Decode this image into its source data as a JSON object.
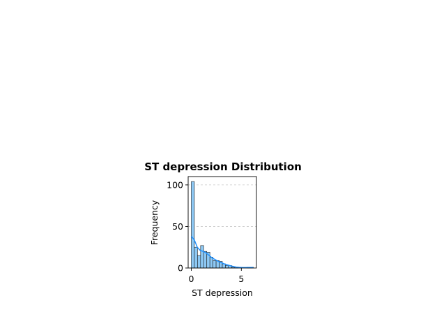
{
  "chart_data": {
    "type": "bar",
    "title": "ST depression Distribution",
    "xlabel": "ST depression",
    "ylabel": "Frequency",
    "xlim": [
      -0.31,
      6.51
    ],
    "ylim": [
      0,
      110
    ],
    "xticks": [
      0,
      5
    ],
    "yticks": [
      0,
      50,
      100
    ],
    "grid": "y-dashed",
    "bin_width": 0.31,
    "bins": [
      {
        "x0": 0.0,
        "x1": 0.31,
        "count": 104
      },
      {
        "x0": 0.31,
        "x1": 0.62,
        "count": 25
      },
      {
        "x0": 0.62,
        "x1": 0.93,
        "count": 15
      },
      {
        "x0": 0.93,
        "x1": 1.24,
        "count": 27
      },
      {
        "x0": 1.24,
        "x1": 1.55,
        "count": 20
      },
      {
        "x0": 1.55,
        "x1": 1.86,
        "count": 19
      },
      {
        "x0": 1.86,
        "x1": 2.17,
        "count": 13
      },
      {
        "x0": 2.17,
        "x1": 2.48,
        "count": 9
      },
      {
        "x0": 2.48,
        "x1": 2.79,
        "count": 9
      },
      {
        "x0": 2.79,
        "x1": 3.1,
        "count": 8
      },
      {
        "x0": 3.1,
        "x1": 3.41,
        "count": 5
      },
      {
        "x0": 3.41,
        "x1": 3.72,
        "count": 3
      },
      {
        "x0": 3.72,
        "x1": 4.03,
        "count": 3
      },
      {
        "x0": 4.03,
        "x1": 4.34,
        "count": 1
      },
      {
        "x0": 4.34,
        "x1": 4.65,
        "count": 1
      },
      {
        "x0": 4.65,
        "x1": 4.96,
        "count": 0
      },
      {
        "x0": 4.96,
        "x1": 5.27,
        "count": 0
      },
      {
        "x0": 5.27,
        "x1": 5.58,
        "count": 0
      },
      {
        "x0": 5.58,
        "x1": 5.89,
        "count": 1
      },
      {
        "x0": 5.89,
        "x1": 6.2,
        "count": 1
      }
    ],
    "kde": {
      "x": [
        0.0,
        0.3,
        0.6,
        0.9,
        1.2,
        1.5,
        1.8,
        2.1,
        2.4,
        2.7,
        3.0,
        3.3,
        3.6,
        3.9,
        4.2,
        4.5,
        4.8,
        5.1,
        5.4,
        5.7,
        6.0,
        6.2
      ],
      "y": [
        38,
        34,
        25,
        21,
        20,
        18,
        15,
        12,
        10,
        8,
        6.5,
        5,
        3.8,
        2.8,
        1.8,
        1.1,
        0.7,
        0.5,
        0.5,
        0.6,
        0.6,
        0.5
      ]
    },
    "colors": {
      "bar_fill": "#8ec9f5",
      "bar_edge": "#1a1a1a",
      "kde_line": "#1e90ff",
      "grid": "#c8c8c8"
    }
  }
}
